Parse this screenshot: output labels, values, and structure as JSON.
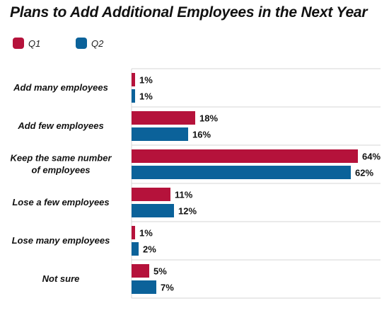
{
  "chart_data": {
    "type": "bar",
    "orientation": "horizontal",
    "title": "Plans to Add Additional Employees in the Next Year",
    "categories": [
      [
        "Add many employees"
      ],
      [
        "Add few employees"
      ],
      [
        "Keep the same number",
        "of employees"
      ],
      [
        "Lose a few employees"
      ],
      [
        "Lose many employees"
      ],
      [
        "Not sure"
      ]
    ],
    "series": [
      {
        "name": "Q1",
        "color": "#b5123b",
        "values": [
          1,
          18,
          64,
          11,
          1,
          5
        ],
        "labels": [
          "1%",
          "18%",
          "64%",
          "11%",
          "1%",
          "5%"
        ]
      },
      {
        "name": "Q2",
        "color": "#0b629a",
        "values": [
          1,
          16,
          62,
          12,
          2,
          7
        ],
        "labels": [
          "1%",
          "16%",
          "62%",
          "12%",
          "2%",
          "7%"
        ]
      }
    ],
    "xlim": [
      0,
      70
    ],
    "legend_position": "top-left",
    "grid": "horizontal separators between categories"
  }
}
